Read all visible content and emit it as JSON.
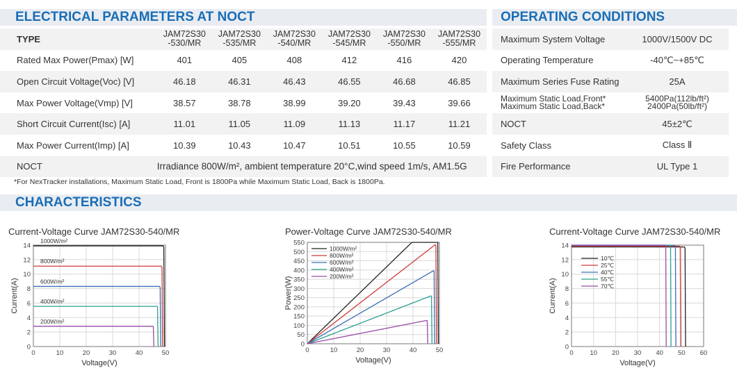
{
  "electrical": {
    "title": "ELECTRICAL PARAMETERS AT NOCT",
    "type_label": "TYPE",
    "models": [
      {
        "line1": "JAM72S30",
        "line2": "-530/MR"
      },
      {
        "line1": "JAM72S30",
        "line2": "-535/MR"
      },
      {
        "line1": "JAM72S30",
        "line2": "-540/MR"
      },
      {
        "line1": "JAM72S30",
        "line2": "-545/MR"
      },
      {
        "line1": "JAM72S30",
        "line2": "-550/MR"
      },
      {
        "line1": "JAM72S30",
        "line2": "-555/MR"
      }
    ],
    "rows": [
      {
        "label": "Rated Max Power(Pmax) [W]",
        "values": [
          "401",
          "405",
          "408",
          "412",
          "416",
          "420"
        ]
      },
      {
        "label": "Open Circuit Voltage(Voc) [V]",
        "values": [
          "46.18",
          "46.31",
          "46.43",
          "46.55",
          "46.68",
          "46.85"
        ]
      },
      {
        "label": "Max Power Voltage(Vmp) [V]",
        "values": [
          "38.57",
          "38.78",
          "38.99",
          "39.20",
          "39.43",
          "39.66"
        ]
      },
      {
        "label": "Short Circuit Current(Isc) [A]",
        "values": [
          "11.01",
          "11.05",
          "11.09",
          "11.13",
          "11.17",
          "11.21"
        ]
      },
      {
        "label": "Max Power Current(Imp) [A]",
        "values": [
          "10.39",
          "10.43",
          "10.47",
          "10.51",
          "10.55",
          "10.59"
        ]
      }
    ],
    "noct_label": "NOCT",
    "noct_value": "Irradiance 800W/m², ambient temperature 20°C,wind speed 1m/s, AM1.5G",
    "footnote": "*For NexTracker installations, Maximum Static Load, Front is 1800Pa while Maximum Static Load, Back is 1800Pa."
  },
  "operating": {
    "title": "OPERATING CONDITIONS",
    "rows": [
      {
        "label": "Maximum System Voltage",
        "value": "1000V/1500V DC"
      },
      {
        "label": "Operating Temperature",
        "value": "-40℃~+85℃"
      },
      {
        "label": "Maximum Series Fuse Rating",
        "value": "25A"
      },
      {
        "label": "Maximum Static Load,Front*",
        "label2": "Maximum Static Load,Back*",
        "value": "5400Pa(112lb/ft²)",
        "value2": "2400Pa(50lb/ft²)"
      },
      {
        "label": "NOCT",
        "value": "45±2℃"
      },
      {
        "label": "Safety Class",
        "value": "Class Ⅱ"
      },
      {
        "label": "Fire Performance",
        "value": "UL Type 1"
      }
    ]
  },
  "characteristics": {
    "title": "CHARACTERISTICS"
  },
  "chart_data": [
    {
      "type": "line",
      "title": "Current-Voltage Curve   JAM72S30-540/MR",
      "xlabel": "Voltage(V)",
      "ylabel": "Current(A)",
      "xlim": [
        0,
        50
      ],
      "ylim": [
        0,
        14
      ],
      "xticks": [
        "0",
        "10",
        "20",
        "30",
        "40",
        "50"
      ],
      "yticks": [
        "0",
        "2",
        "4",
        "6",
        "8",
        "10",
        "12",
        "14"
      ],
      "grid": true,
      "legend": "inline",
      "series": [
        {
          "name": "1000W/m²",
          "isc": 13.9,
          "voc": 49.6,
          "color": "#222222"
        },
        {
          "name": "800W/m²",
          "isc": 11.1,
          "voc": 48.9,
          "color": "#d03a3a"
        },
        {
          "name": "600W/m²",
          "isc": 8.3,
          "voc": 48.2,
          "color": "#3a6fb5"
        },
        {
          "name": "400W/m²",
          "isc": 5.55,
          "voc": 47.2,
          "color": "#2aa090"
        },
        {
          "name": "200W/m²",
          "isc": 2.8,
          "voc": 45.6,
          "color": "#9a4aa8"
        }
      ]
    },
    {
      "type": "line",
      "title": "Power-Voltage Curve   JAM72S30-540/MR",
      "xlabel": "Voltage(V)",
      "ylabel": "Power(W)",
      "xlim": [
        0,
        50
      ],
      "ylim": [
        0,
        550
      ],
      "xticks": [
        "0",
        "10",
        "20",
        "30",
        "40",
        "50"
      ],
      "yticks": [
        "0",
        "50",
        "100",
        "150",
        "200",
        "250",
        "300",
        "350",
        "400",
        "450",
        "500",
        "550"
      ],
      "grid": true,
      "legend": "top-left",
      "series": [
        {
          "name": "1000W/m²",
          "isc": 13.9,
          "voc": 49.6,
          "color": "#222222"
        },
        {
          "name": "800W/m²",
          "isc": 11.1,
          "voc": 48.9,
          "color": "#d03a3a"
        },
        {
          "name": "600W/m²",
          "isc": 8.3,
          "voc": 48.2,
          "color": "#3a6fb5"
        },
        {
          "name": "400W/m²",
          "isc": 5.55,
          "voc": 47.2,
          "color": "#2aa090"
        },
        {
          "name": "200W/m²",
          "isc": 2.8,
          "voc": 45.6,
          "color": "#9a4aa8"
        }
      ]
    },
    {
      "type": "line",
      "title": "Current-Voltage Curve   JAM72S30-540/MR",
      "xlabel": "Voltage(V)",
      "ylabel": "Current(A)",
      "xlim": [
        0,
        60
      ],
      "ylim": [
        0,
        14
      ],
      "xticks": [
        "0",
        "10",
        "20",
        "30",
        "40",
        "50",
        "60"
      ],
      "yticks": [
        "0",
        "2",
        "4",
        "6",
        "8",
        "10",
        "12",
        "14"
      ],
      "grid": true,
      "legend": "left",
      "series": [
        {
          "name": "10℃",
          "isc": 13.75,
          "voc": 51.8,
          "color": "#222222"
        },
        {
          "name": "25℃",
          "isc": 13.85,
          "voc": 49.6,
          "color": "#d03a3a"
        },
        {
          "name": "40℃",
          "isc": 13.95,
          "voc": 47.4,
          "color": "#3a6fb5"
        },
        {
          "name": "55℃",
          "isc": 14.05,
          "voc": 45.2,
          "color": "#2aa090"
        },
        {
          "name": "70℃",
          "isc": 14.15,
          "voc": 43.0,
          "color": "#9a4aa8"
        }
      ]
    }
  ]
}
